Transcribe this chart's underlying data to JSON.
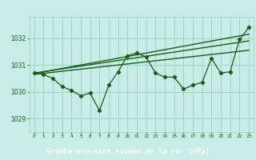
{
  "title": "Graphe pression niveau de la mer (hPa)",
  "bg_color": "#c8ece6",
  "plot_bg_color": "#c8ece6",
  "label_bg_color": "#3d7a3d",
  "grid_color": "#a0d4c8",
  "line_color": "#1a5c1a",
  "marker_color": "#1a5c1a",
  "title_color": "#c8ece6",
  "axis_color": "#1a5c1a",
  "ylim": [
    1028.5,
    1032.8
  ],
  "yticks": [
    1029,
    1030,
    1031,
    1032
  ],
  "xlim": [
    -0.5,
    23.5
  ],
  "xticks": [
    0,
    1,
    2,
    3,
    4,
    5,
    6,
    7,
    8,
    9,
    10,
    11,
    12,
    13,
    14,
    15,
    16,
    17,
    18,
    19,
    20,
    21,
    22,
    23
  ],
  "series1": [
    1030.7,
    1030.65,
    1030.5,
    1030.2,
    1030.05,
    1029.85,
    1029.95,
    1029.3,
    1030.25,
    1030.75,
    1031.35,
    1031.45,
    1031.3,
    1030.7,
    1030.55,
    1030.55,
    1030.1,
    1030.25,
    1030.35,
    1031.25,
    1030.7,
    1030.75,
    1031.95,
    1032.4
  ],
  "trend1_x": [
    0,
    23
  ],
  "trend1_y": [
    1030.65,
    1031.55
  ],
  "trend2_x": [
    0,
    23
  ],
  "trend2_y": [
    1030.68,
    1032.15
  ],
  "trend3_x": [
    0,
    23
  ],
  "trend3_y": [
    1030.7,
    1031.9
  ]
}
